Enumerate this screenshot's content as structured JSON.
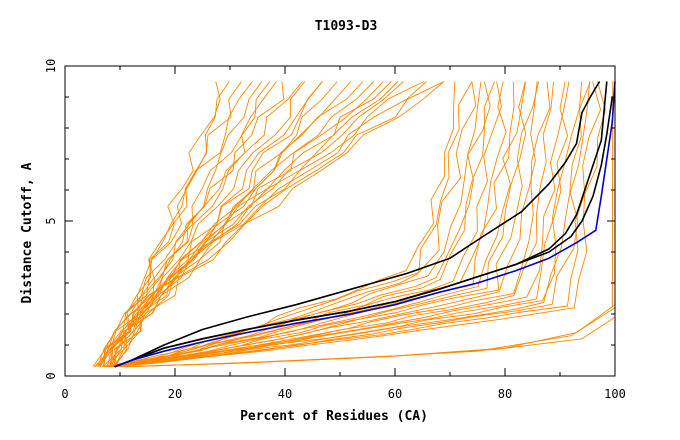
{
  "chart_data": {
    "type": "line",
    "title": "T1093-D3",
    "xlabel": "Percent of Residues (CA)",
    "ylabel": "Distance Cutoff, A",
    "xlim": [
      0,
      100
    ],
    "ylim": [
      0,
      10
    ],
    "x_ticks": [
      0,
      20,
      40,
      60,
      80,
      100
    ],
    "x_tick_labels": [
      "0",
      "20",
      "40",
      "60",
      "80",
      "100"
    ],
    "y_ticks": [
      0,
      5,
      10
    ],
    "y_tick_labels": [
      "0",
      "5",
      "10"
    ],
    "grid": false,
    "legend": "none",
    "colors": {
      "other_models": "#ff8800",
      "highlight_black": "#000000",
      "highlight_blue": "#0000cc"
    },
    "highlighted_series": [
      {
        "color": "#000000",
        "x": [
          9,
          12,
          18,
          25,
          33,
          42,
          52,
          62,
          70,
          76,
          83,
          88,
          91,
          93,
          94,
          95.5,
          96.5,
          97.2
        ],
        "y": [
          0.3,
          0.5,
          1.0,
          1.5,
          1.9,
          2.3,
          2.8,
          3.3,
          3.8,
          4.5,
          5.3,
          6.2,
          6.9,
          7.5,
          8.5,
          9.0,
          9.3,
          9.5
        ]
      },
      {
        "color": "#000000",
        "x": [
          9,
          12,
          18,
          25,
          33,
          42,
          52,
          60,
          68,
          75,
          82,
          88,
          91,
          93,
          94.5,
          96,
          97.5,
          98.5
        ],
        "y": [
          0.3,
          0.5,
          0.9,
          1.2,
          1.5,
          1.8,
          2.1,
          2.4,
          2.8,
          3.2,
          3.6,
          4.1,
          4.6,
          5.2,
          6.0,
          6.8,
          7.6,
          9.5
        ]
      },
      {
        "color": "#000000",
        "x": [
          9,
          12,
          18,
          25,
          33,
          42,
          52,
          60,
          68,
          75,
          82,
          88,
          92,
          94,
          96,
          97.5,
          98.5,
          99.5
        ],
        "y": [
          0.3,
          0.5,
          0.9,
          1.2,
          1.5,
          1.8,
          2.1,
          2.4,
          2.8,
          3.2,
          3.6,
          4.0,
          4.5,
          5.0,
          5.8,
          6.8,
          7.8,
          9.0
        ]
      },
      {
        "color": "#0000cc",
        "x": [
          9,
          12,
          18,
          25,
          33,
          42,
          52,
          60,
          68,
          75,
          82,
          88,
          93,
          96.5,
          97.5,
          98.5,
          99.5,
          100
        ],
        "y": [
          0.3,
          0.5,
          0.8,
          1.1,
          1.4,
          1.7,
          2.0,
          2.3,
          2.7,
          3.0,
          3.4,
          3.8,
          4.3,
          4.7,
          5.8,
          7.0,
          8.2,
          9.5
        ]
      }
    ],
    "background_models": {
      "color": "#ff8800",
      "count_steep_fan": 24,
      "count_main_band": 22,
      "count_flat_low": 3,
      "count_vertical_near_100": 1,
      "y_max": 9.5
    }
  }
}
